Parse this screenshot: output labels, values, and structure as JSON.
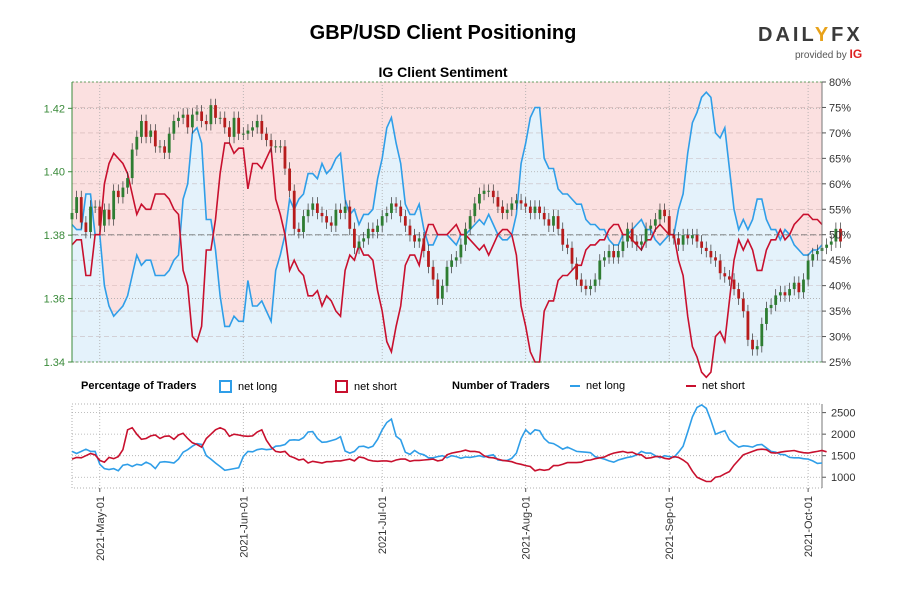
{
  "title": "GBP/USD Client Positioning",
  "subtitle": "IG Client Sentiment",
  "logo": {
    "brand_a": "DAIL",
    "brand_y": "Y",
    "brand_b": "FX",
    "provided_by": "provided by",
    "ig": "IG"
  },
  "colors": {
    "net_long": "#2f9ee8",
    "net_short": "#c8102e",
    "up_candle": "#2e7d32",
    "down_candle": "#b71c1c",
    "long_fill": "#e4f2fb",
    "short_fill": "#fbe0e0"
  },
  "legend": {
    "pct_title": "Percentage of Traders",
    "pct_long": "net long",
    "pct_short": "net short",
    "num_title": "Number of Traders",
    "num_long": "net long",
    "num_short": "net short"
  },
  "chart_data": [
    {
      "type": "line",
      "name": "price-and-sentiment",
      "x_ticks": [
        "2021-May-01",
        "2021-Jun-01",
        "2021-Jul-01",
        "2021-Aug-01",
        "2021-Sep-01",
        "2021-Oct-01"
      ],
      "y_left_ticks": [
        "1.34",
        "1.36",
        "1.38",
        "1.40",
        "1.42"
      ],
      "y_left_range": [
        1.34,
        1.4283
      ],
      "y_right_ticks": [
        "25%",
        "30%",
        "35%",
        "40%",
        "45%",
        "50%",
        "55%",
        "60%",
        "65%",
        "70%",
        "75%",
        "80%"
      ],
      "y_right_range": [
        25,
        80
      ],
      "net_long_pct": [
        52,
        51,
        51,
        58,
        58,
        50,
        50,
        40,
        36,
        34,
        35,
        36,
        38,
        42,
        46,
        44,
        45,
        45,
        42,
        42,
        42,
        43,
        45,
        46,
        57,
        60,
        70,
        71,
        68,
        53,
        53,
        47,
        38,
        32,
        32,
        34,
        33,
        33,
        41,
        36,
        36,
        37,
        35,
        33,
        43,
        46,
        50,
        57,
        55,
        57,
        58,
        62,
        62,
        61,
        64,
        62,
        63,
        65,
        66,
        57,
        54,
        55,
        52,
        54,
        54,
        55,
        61,
        65,
        71,
        73,
        68,
        64,
        56,
        54,
        54,
        56,
        51,
        48,
        48,
        50,
        50,
        50,
        49,
        48,
        50,
        50,
        51,
        52,
        53,
        52,
        54,
        52,
        50,
        49,
        49,
        50,
        54,
        64,
        68,
        73,
        75,
        75,
        65,
        63,
        63,
        59,
        58,
        58,
        57,
        56,
        56,
        53,
        52,
        52,
        51,
        51,
        49,
        48,
        48,
        50,
        50,
        51,
        52,
        53,
        51,
        51,
        49,
        48,
        49,
        50,
        50,
        55,
        58,
        66,
        72,
        74,
        77,
        78,
        77,
        70,
        69,
        71,
        63,
        55,
        51,
        53,
        51,
        53,
        57,
        57,
        53,
        51,
        51,
        49,
        51,
        50,
        48,
        47,
        46,
        46,
        47,
        47,
        48
      ],
      "net_short_pct": [
        48,
        49,
        49,
        42,
        42,
        50,
        50,
        60,
        64,
        66,
        65,
        64,
        62,
        58,
        54,
        56,
        55,
        55,
        58,
        58,
        58,
        57,
        55,
        54,
        43,
        40,
        30,
        29,
        32,
        47,
        47,
        53,
        62,
        68,
        68,
        66,
        67,
        67,
        59,
        64,
        64,
        63,
        65,
        67,
        57,
        54,
        50,
        43,
        45,
        43,
        42,
        38,
        38,
        39,
        36,
        38,
        37,
        35,
        34,
        43,
        46,
        45,
        48,
        46,
        46,
        45,
        39,
        35,
        29,
        27,
        32,
        36,
        44,
        46,
        46,
        44,
        49,
        52,
        52,
        50,
        50,
        50,
        51,
        52,
        50,
        50,
        49,
        48,
        47,
        48,
        46,
        48,
        50,
        51,
        51,
        50,
        46,
        36,
        32,
        27,
        25,
        25,
        35,
        37,
        37,
        41,
        42,
        42,
        43,
        44,
        44,
        47,
        48,
        48,
        49,
        49,
        51,
        52,
        52,
        50,
        50,
        49,
        48,
        47,
        49,
        49,
        51,
        52,
        51,
        50,
        50,
        45,
        42,
        34,
        28,
        26,
        23,
        22,
        23,
        30,
        31,
        29,
        37,
        45,
        49,
        47,
        49,
        47,
        43,
        43,
        47,
        49,
        49,
        51,
        49,
        50,
        52,
        53,
        54,
        54,
        53,
        53,
        52
      ],
      "price_close": [
        1.387,
        1.392,
        1.384,
        1.381,
        1.389,
        1.389,
        1.383,
        1.388,
        1.385,
        1.394,
        1.392,
        1.395,
        1.398,
        1.407,
        1.411,
        1.416,
        1.411,
        1.413,
        1.408,
        1.408,
        1.406,
        1.412,
        1.416,
        1.417,
        1.418,
        1.414,
        1.418,
        1.419,
        1.416,
        1.415,
        1.421,
        1.417,
        1.417,
        1.414,
        1.411,
        1.417,
        1.412,
        1.412,
        1.413,
        1.414,
        1.416,
        1.412,
        1.41,
        1.408,
        1.408,
        1.408,
        1.401,
        1.394,
        1.382,
        1.381,
        1.386,
        1.388,
        1.39,
        1.387,
        1.386,
        1.384,
        1.383,
        1.388,
        1.387,
        1.389,
        1.382,
        1.376,
        1.378,
        1.379,
        1.382,
        1.381,
        1.383,
        1.386,
        1.387,
        1.39,
        1.389,
        1.386,
        1.383,
        1.38,
        1.378,
        1.379,
        1.375,
        1.37,
        1.366,
        1.36,
        1.364,
        1.37,
        1.372,
        1.373,
        1.377,
        1.382,
        1.386,
        1.39,
        1.393,
        1.394,
        1.394,
        1.392,
        1.389,
        1.387,
        1.388,
        1.39,
        1.391,
        1.39,
        1.389,
        1.387,
        1.389,
        1.387,
        1.385,
        1.383,
        1.386,
        1.382,
        1.377,
        1.376,
        1.371,
        1.366,
        1.364,
        1.363,
        1.364,
        1.366,
        1.372,
        1.373,
        1.375,
        1.373,
        1.375,
        1.378,
        1.382,
        1.378,
        1.377,
        1.378,
        1.382,
        1.383,
        1.385,
        1.388,
        1.386,
        1.38,
        1.379,
        1.377,
        1.38,
        1.379,
        1.38,
        1.378,
        1.376,
        1.375,
        1.373,
        1.372,
        1.368,
        1.367,
        1.366,
        1.363,
        1.36,
        1.356,
        1.347,
        1.344,
        1.345,
        1.352,
        1.357,
        1.358,
        1.361,
        1.362,
        1.361,
        1.363,
        1.365,
        1.362,
        1.366,
        1.372,
        1.374,
        1.375,
        1.376,
        1.377,
        1.378,
        1.382,
        1.378
      ]
    },
    {
      "type": "line",
      "name": "number-of-traders",
      "y_ticks": [
        "1000",
        "1500",
        "2000",
        "2500"
      ],
      "y_range": [
        750,
        2700
      ],
      "net_long": [
        1600,
        1550,
        1600,
        1650,
        1600,
        1600,
        1300,
        1200,
        1180,
        1200,
        1150,
        1280,
        1300,
        1250,
        1300,
        1280,
        1350,
        1300,
        1200,
        1350,
        1360,
        1350,
        1330,
        1420,
        1580,
        1640,
        1720,
        1780,
        1760,
        1500,
        1420,
        1330,
        1250,
        1160,
        1180,
        1200,
        1220,
        1480,
        1600,
        1590,
        1640,
        1660,
        1640,
        1650,
        1720,
        1730,
        1760,
        1860,
        1870,
        1860,
        1920,
        2050,
        2060,
        1900,
        1810,
        1820,
        1850,
        1880,
        1940,
        1610,
        1560,
        1600,
        1710,
        1720,
        1680,
        1720,
        1880,
        2100,
        2270,
        2350,
        1950,
        1870,
        1580,
        1530,
        1620,
        1550,
        1520,
        1450,
        1450,
        1480,
        1500,
        1450,
        1500,
        1480,
        1440,
        1470,
        1460,
        1480,
        1500,
        1470,
        1500,
        1520,
        1400,
        1390,
        1390,
        1440,
        1560,
        1900,
        2100,
        2000,
        2100,
        2080,
        1900,
        1800,
        1780,
        1720,
        1650,
        1700,
        1650,
        1600,
        1590,
        1580,
        1570,
        1480,
        1450,
        1420,
        1380,
        1350,
        1400,
        1430,
        1460,
        1480,
        1520,
        1600,
        1560,
        1560,
        1500,
        1450,
        1500,
        1480,
        1460,
        1580,
        1720,
        2050,
        2400,
        2620,
        2680,
        2600,
        2320,
        2000,
        2040,
        2080,
        1870,
        1780,
        1700,
        1730,
        1720,
        1700,
        1750,
        1760,
        1680,
        1600,
        1580,
        1530,
        1520,
        1460,
        1450,
        1450,
        1430,
        1420,
        1380,
        1320,
        1330
      ],
      "net_short": [
        1420,
        1460,
        1450,
        1500,
        1550,
        1520,
        1390,
        1350,
        1460,
        1430,
        1480,
        1640,
        2100,
        2150,
        2000,
        1880,
        1900,
        1960,
        1980,
        1900,
        1950,
        1960,
        1880,
        1980,
        2020,
        1900,
        1800,
        1760,
        1700,
        1900,
        2000,
        2100,
        2150,
        2100,
        1950,
        2000,
        1980,
        1960,
        1950,
        1960,
        2050,
        2100,
        1860,
        1700,
        1600,
        1580,
        1600,
        1490,
        1450,
        1400,
        1420,
        1330,
        1370,
        1350,
        1330,
        1360,
        1360,
        1380,
        1380,
        1400,
        1420,
        1380,
        1470,
        1450,
        1400,
        1380,
        1370,
        1380,
        1380,
        1360,
        1400,
        1420,
        1420,
        1370,
        1390,
        1390,
        1400,
        1410,
        1420,
        1380,
        1400,
        1520,
        1560,
        1580,
        1600,
        1630,
        1600,
        1600,
        1580,
        1500,
        1460,
        1450,
        1420,
        1390,
        1380,
        1360,
        1320,
        1300,
        1270,
        1250,
        1150,
        1180,
        1160,
        1180,
        1270,
        1270,
        1300,
        1340,
        1340,
        1340,
        1350,
        1390,
        1400,
        1430,
        1450,
        1470,
        1520,
        1560,
        1580,
        1600,
        1570,
        1580,
        1530,
        1520,
        1440,
        1450,
        1480,
        1480,
        1440,
        1420,
        1480,
        1460,
        1400,
        1320,
        1140,
        1000,
        950,
        900,
        900,
        1000,
        1020,
        1080,
        1130,
        1280,
        1400,
        1520,
        1560,
        1600,
        1640,
        1650,
        1640,
        1570,
        1560,
        1580,
        1600,
        1610,
        1620,
        1590,
        1570,
        1560,
        1580,
        1600,
        1620,
        1590
      ]
    }
  ]
}
